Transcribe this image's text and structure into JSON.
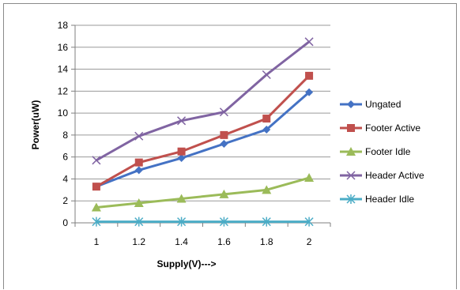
{
  "chart_data": {
    "type": "line",
    "title": "",
    "xlabel": "Supply(V)--->",
    "ylabel": "Power(uW)",
    "categories": [
      "1",
      "1.2",
      "1.4",
      "1.6",
      "1.8",
      "2"
    ],
    "ylim": [
      0,
      18
    ],
    "yticks": [
      "0",
      "2",
      "4",
      "6",
      "8",
      "10",
      "12",
      "14",
      "16",
      "18"
    ],
    "grid": "horizontal",
    "legend_position": "right",
    "series": [
      {
        "name": "Ungated",
        "values": [
          3.3,
          4.8,
          5.9,
          7.2,
          8.5,
          11.9
        ],
        "color": "#4472C4",
        "marker": "diamond"
      },
      {
        "name": "Footer Active",
        "values": [
          3.3,
          5.5,
          6.5,
          8.0,
          9.5,
          13.4
        ],
        "color": "#C0504D",
        "marker": "square"
      },
      {
        "name": "Footer Idle",
        "values": [
          1.4,
          1.8,
          2.2,
          2.6,
          3.0,
          4.1
        ],
        "color": "#9BBB59",
        "marker": "triangle"
      },
      {
        "name": "Header Active",
        "values": [
          5.7,
          7.9,
          9.3,
          10.1,
          13.5,
          16.5
        ],
        "color": "#8064A2",
        "marker": "x"
      },
      {
        "name": "Header Idle",
        "values": [
          0.1,
          0.1,
          0.1,
          0.1,
          0.1,
          0.1
        ],
        "color": "#4BACC6",
        "marker": "star"
      }
    ]
  }
}
